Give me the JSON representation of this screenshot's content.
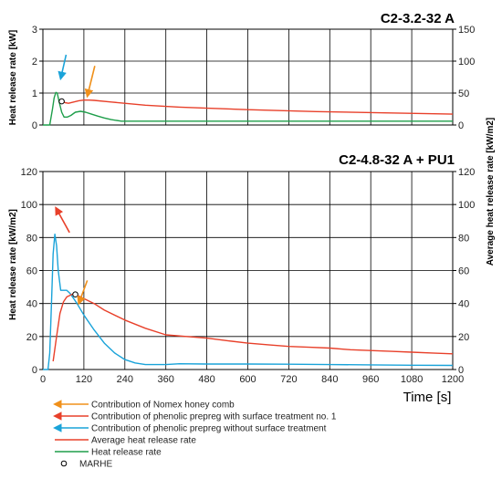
{
  "chart_data": [
    {
      "type": "line",
      "title": "C2-3.2-32 A",
      "ylabel_left": "Heat release rate [kW]",
      "ylabel_right": "",
      "xlim": [
        0,
        1200
      ],
      "ylim_left": [
        0,
        3
      ],
      "ylim_right": [
        0,
        150
      ],
      "yticks_left": [
        "0",
        "1",
        "2",
        "3"
      ],
      "yticks_right": [
        "0",
        "50",
        "100",
        "150"
      ],
      "grid": true,
      "series": [
        {
          "name": "Heat release rate",
          "axis": "left",
          "color": "#1e9e4a",
          "x": [
            0,
            20,
            28,
            33,
            38,
            42,
            48,
            55,
            62,
            72,
            82,
            95,
            110,
            125,
            140,
            160,
            180,
            200,
            230,
            300,
            400,
            600,
            800,
            1000,
            1200
          ],
          "y": [
            0,
            0,
            0.5,
            0.85,
            1.02,
            1.0,
            0.7,
            0.4,
            0.25,
            0.25,
            0.3,
            0.4,
            0.43,
            0.4,
            0.35,
            0.28,
            0.22,
            0.17,
            0.12,
            0.12,
            0.12,
            0.12,
            0.12,
            0.12,
            0.12
          ]
        },
        {
          "name": "Average heat release rate",
          "axis": "right",
          "color": "#e8402a",
          "x": [
            50,
            55,
            60,
            65,
            75,
            90,
            105,
            120,
            135,
            150,
            200,
            300,
            400,
            500,
            600,
            800,
            1000,
            1200
          ],
          "y": [
            38,
            37,
            36,
            35,
            34,
            36,
            38,
            39,
            39,
            38.5,
            36,
            31,
            28,
            26,
            24,
            21,
            19,
            17
          ]
        }
      ],
      "markers": {
        "marhe": {
          "x": 55,
          "y": 37,
          "axis": "right"
        }
      },
      "arrows": [
        {
          "color": "#1aa3d9",
          "from": [
            68,
            2.2
          ],
          "to": [
            52,
            1.45
          ],
          "axis": "left"
        },
        {
          "color": "#f0901a",
          "from": [
            152,
            1.85
          ],
          "to": [
            130,
            0.9
          ],
          "axis": "left"
        }
      ]
    },
    {
      "type": "line",
      "title": "C2-4.8-32 A + PU1",
      "ylabel_left": "Heat release rate [kW/m2]",
      "ylabel_right": "Average heat release rate [kW/m2]",
      "xlabel": "Time [s]",
      "xlim": [
        0,
        1200
      ],
      "ylim_left": [
        0,
        120
      ],
      "ylim_right": [
        0,
        120
      ],
      "xticks": [
        "0",
        "120",
        "240",
        "360",
        "480",
        "600",
        "720",
        "840",
        "960",
        "1080",
        "1200"
      ],
      "yticks_left": [
        "0",
        "20",
        "40",
        "60",
        "80",
        "100",
        "120"
      ],
      "yticks_right": [
        "0",
        "20",
        "40",
        "60",
        "80",
        "100",
        "120"
      ],
      "grid": true,
      "series": [
        {
          "name": "Contribution of phenolic prepreg without surface treatment",
          "axis": "left",
          "color": "#1aa3d9",
          "x": [
            0,
            15,
            20,
            25,
            30,
            35,
            40,
            45,
            52,
            60,
            70,
            80,
            90,
            100,
            120,
            150,
            180,
            210,
            240,
            270,
            300,
            330,
            360,
            400,
            480,
            600,
            720,
            840,
            960,
            1080,
            1200
          ],
          "y": [
            0,
            0,
            10,
            40,
            70,
            82,
            75,
            60,
            48,
            48,
            48,
            46,
            43,
            40,
            33,
            24,
            16,
            10,
            6,
            4,
            3,
            3,
            3,
            3.5,
            3.3,
            3.3,
            3.2,
            3,
            2.8,
            2.6,
            2.5
          ]
        },
        {
          "name": "Contribution of phenolic prepreg with surface treatment no. 1",
          "axis": "right",
          "color": "#e8402a",
          "x": [
            30,
            40,
            50,
            60,
            70,
            80,
            90,
            100,
            120,
            150,
            180,
            240,
            300,
            360,
            420,
            480,
            540,
            600,
            660,
            720,
            780,
            840,
            900,
            960,
            1020,
            1080,
            1140,
            1200
          ],
          "y": [
            5,
            20,
            34,
            41,
            44,
            45,
            46,
            45,
            43,
            40,
            36,
            30,
            25,
            21,
            20,
            19,
            17.5,
            16,
            15,
            14,
            13.5,
            13,
            12,
            11.5,
            11,
            10.5,
            10,
            9.5
          ]
        }
      ],
      "markers": {
        "marhe": {
          "x": 95,
          "y": 45.5,
          "axis": "right"
        }
      },
      "arrows": [
        {
          "color": "#e8402a",
          "from": [
            78,
            83
          ],
          "to": [
            38,
            98
          ],
          "axis": "left"
        },
        {
          "color": "#f0901a",
          "from": [
            130,
            54
          ],
          "to": [
            105,
            40
          ],
          "axis": "left"
        }
      ]
    }
  ],
  "legend": [
    {
      "kind": "arrow",
      "color": "#f0901a",
      "label": "Contribution of Nomex honey comb"
    },
    {
      "kind": "arrow",
      "color": "#e8402a",
      "label": "Contribution of phenolic prepreg with surface treatment no. 1"
    },
    {
      "kind": "arrow",
      "color": "#1aa3d9",
      "label": "Contribution of phenolic prepreg without surface treatment"
    },
    {
      "kind": "line",
      "color": "#e8402a",
      "label": "Average heat release rate"
    },
    {
      "kind": "line",
      "color": "#1e9e4a",
      "label": "Heat release rate"
    },
    {
      "kind": "marker",
      "color": "#000000",
      "label": "MARHE"
    }
  ]
}
